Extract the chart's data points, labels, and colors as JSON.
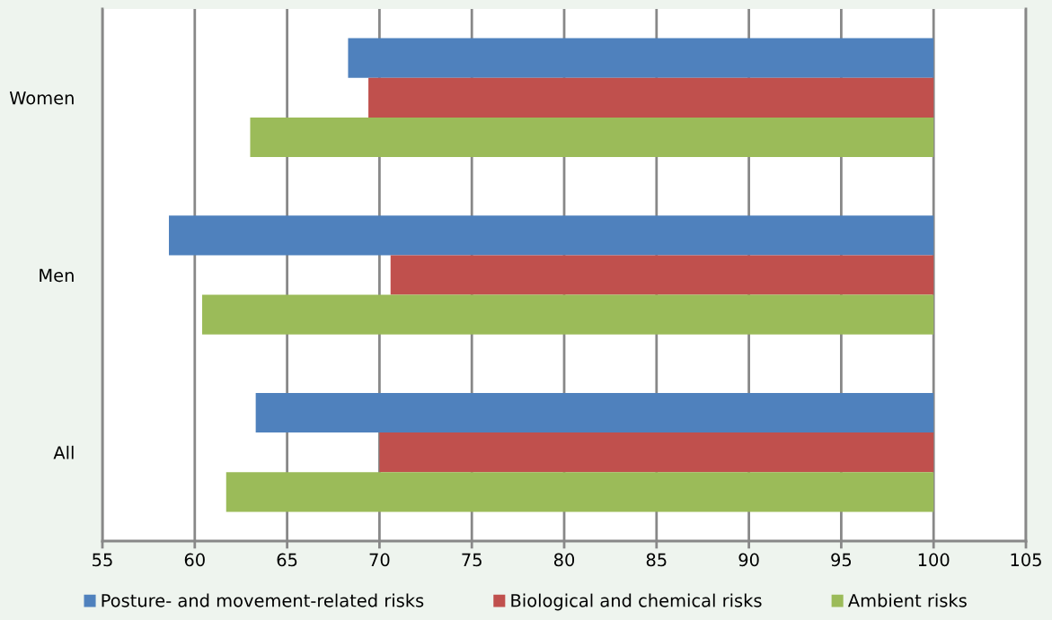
{
  "chart_data": {
    "type": "bar",
    "orientation": "horizontal",
    "categories": [
      "Women",
      "Men",
      "All"
    ],
    "series": [
      {
        "name": "Posture- and movement-related risks",
        "color": "#4f81bd",
        "values": [
          -31.7,
          -41.4,
          -36.7
        ],
        "base": [
          100,
          100,
          100
        ]
      },
      {
        "name": "Biological and chemical risks",
        "color": "#c0504d",
        "values": [
          -30.6,
          -29.4,
          -30.0
        ],
        "base": [
          100,
          100,
          100
        ]
      },
      {
        "name": "Ambient risks",
        "color": "#9bbb59",
        "values": [
          -37.0,
          -39.6,
          -38.3
        ],
        "base": [
          100,
          100,
          100
        ]
      }
    ],
    "xlim": [
      55,
      105
    ],
    "xticks": [
      55,
      60,
      65,
      70,
      75,
      80,
      85,
      90,
      95,
      100,
      105
    ],
    "grid": "x",
    "legend": "bottom"
  }
}
